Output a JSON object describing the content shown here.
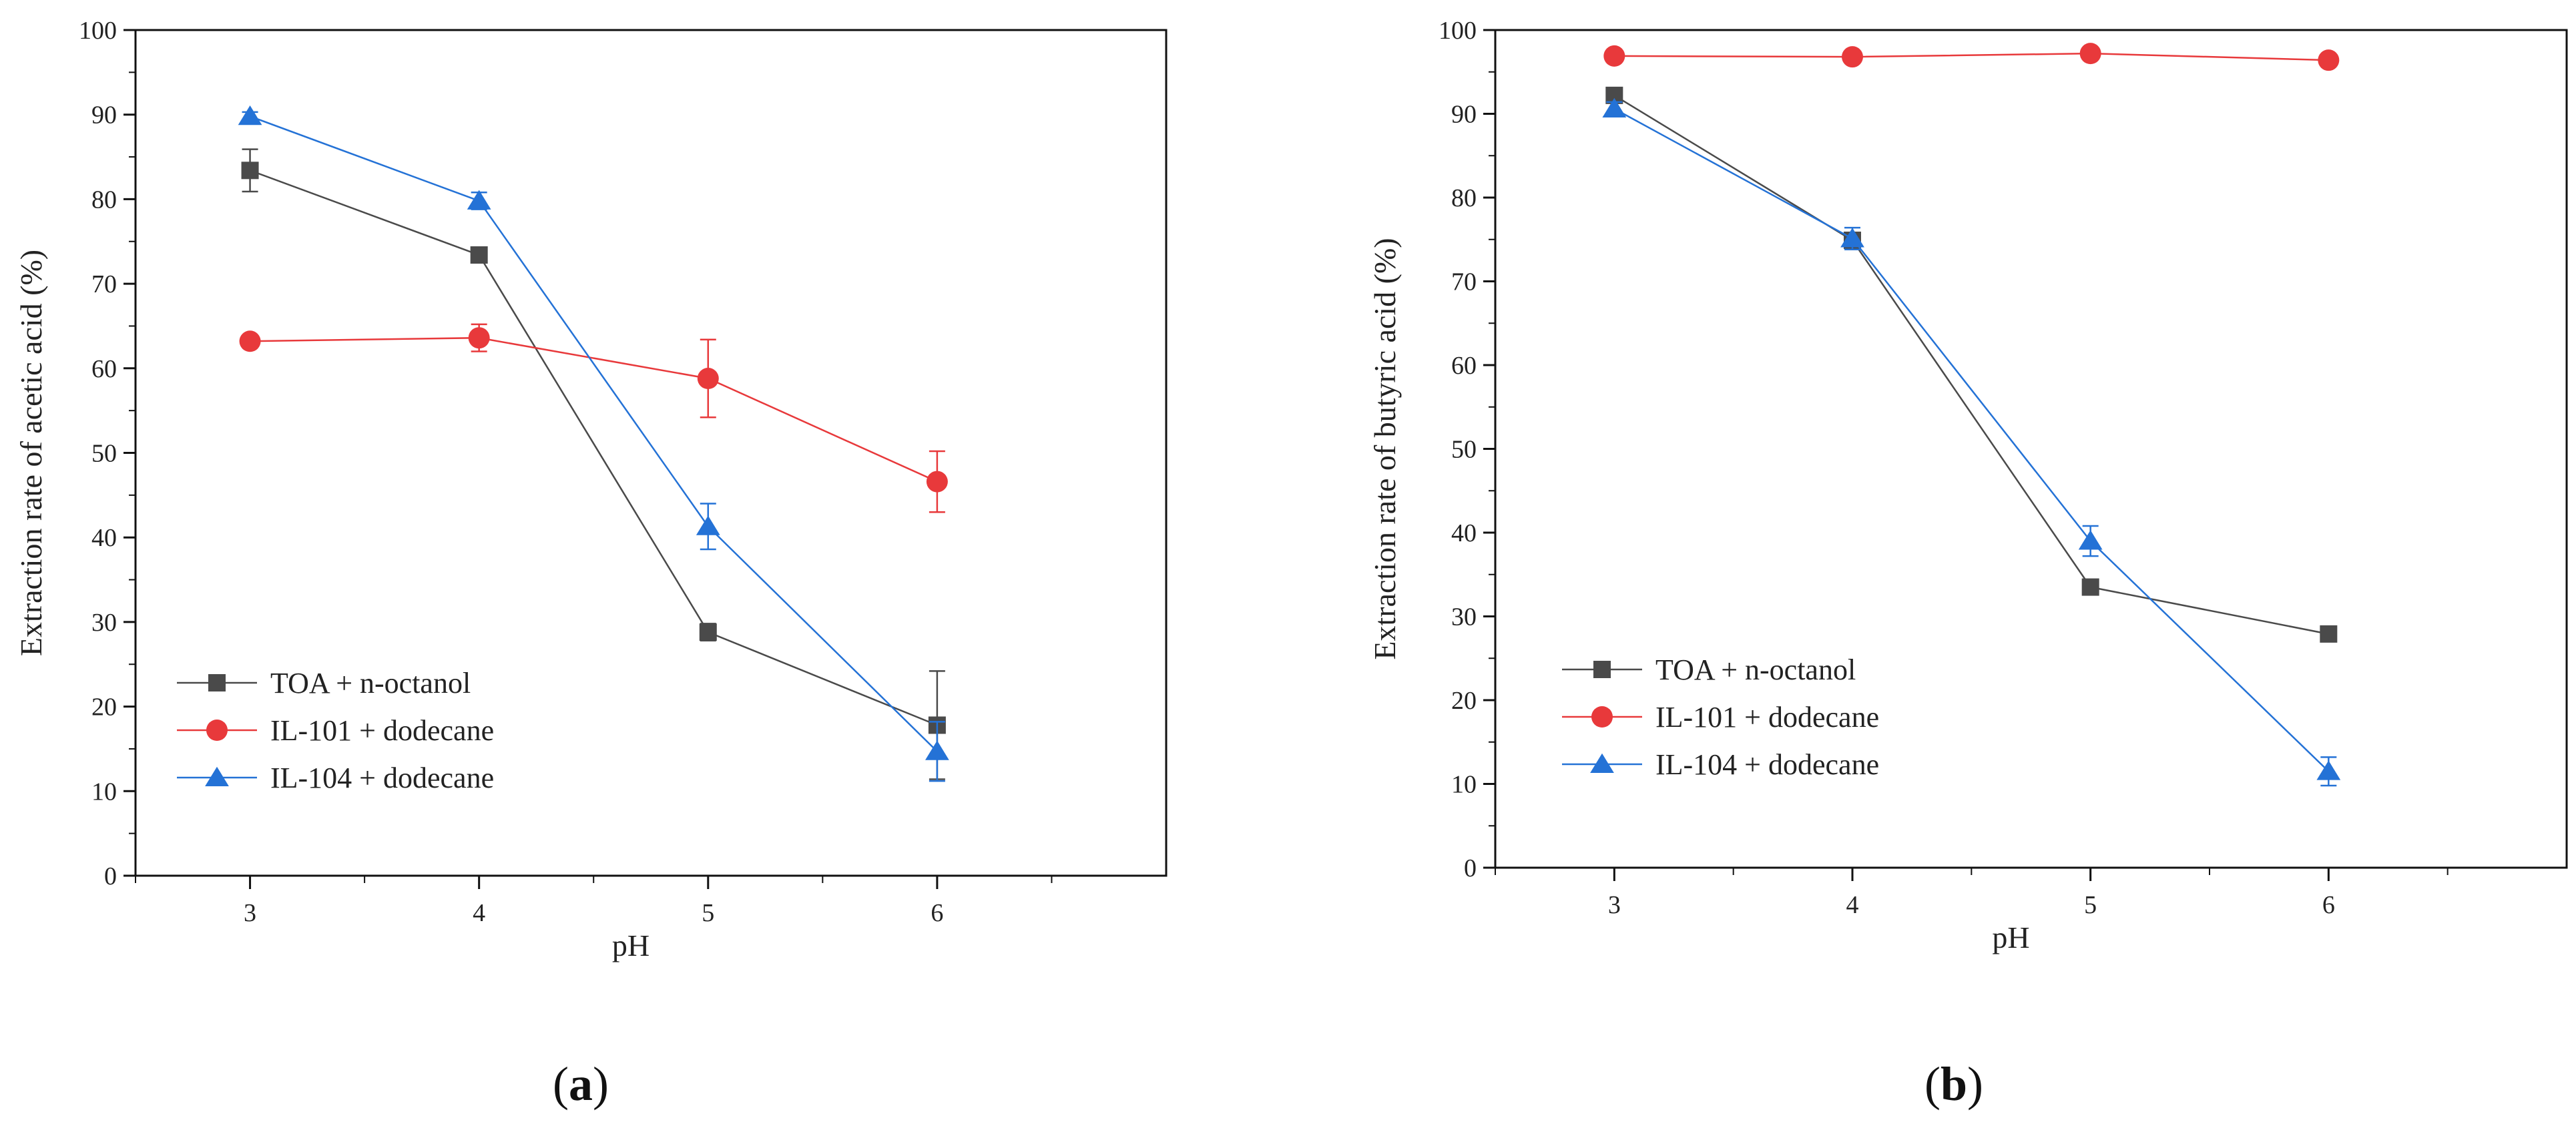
{
  "chart_data": [
    {
      "id": "a",
      "type": "line",
      "panel_label": "a",
      "xlabel": "pH",
      "ylabel": "Extraction rate of acetic acid (%)",
      "x": [
        3,
        4,
        5,
        6
      ],
      "xlim": [
        2.5,
        7.0
      ],
      "ylim": [
        0,
        100
      ],
      "xticks": [
        3,
        4,
        5,
        6
      ],
      "yticks": [
        0,
        10,
        20,
        30,
        40,
        50,
        60,
        70,
        80,
        90,
        100
      ],
      "legend_position": "lower-left",
      "series": [
        {
          "name": "TOA + n-octanol",
          "marker": "square",
          "color": "#4a4a4a",
          "values": [
            83.4,
            73.4,
            28.8,
            17.8
          ],
          "errors": [
            2.5,
            0.6,
            1.0,
            6.4
          ]
        },
        {
          "name": "IL-101 + dodecane",
          "marker": "circle",
          "color": "#e8393b",
          "values": [
            63.2,
            63.6,
            58.8,
            46.6
          ],
          "errors": [
            0.5,
            1.6,
            4.6,
            3.6
          ]
        },
        {
          "name": "IL-104 + dodecane",
          "marker": "triangle",
          "color": "#2472d6",
          "values": [
            89.8,
            79.8,
            41.3,
            14.7
          ],
          "errors": [
            0.5,
            1.0,
            2.7,
            3.5
          ]
        }
      ]
    },
    {
      "id": "b",
      "type": "line",
      "panel_label": "b",
      "xlabel": "pH",
      "ylabel": "Extraction rate of butyric acid (%)",
      "x": [
        3,
        4,
        5,
        6
      ],
      "xlim": [
        2.5,
        7.0
      ],
      "ylim": [
        0,
        100
      ],
      "xticks": [
        3,
        4,
        5,
        6
      ],
      "yticks": [
        0,
        10,
        20,
        30,
        40,
        50,
        60,
        70,
        80,
        90,
        100
      ],
      "legend_position": "lower-left",
      "series": [
        {
          "name": "TOA + n-octanol",
          "marker": "square",
          "color": "#4a4a4a",
          "values": [
            92.2,
            74.9,
            33.5,
            27.9
          ],
          "errors": [
            0.6,
            0.5,
            0.6,
            0.4
          ]
        },
        {
          "name": "IL-101 + dodecane",
          "marker": "circle",
          "color": "#e8393b",
          "values": [
            96.9,
            96.8,
            97.2,
            96.4
          ],
          "errors": [
            0.3,
            0.3,
            0.3,
            0.3
          ]
        },
        {
          "name": "IL-104 + dodecane",
          "marker": "triangle",
          "color": "#2472d6",
          "values": [
            90.6,
            75.1,
            39.0,
            11.5
          ],
          "errors": [
            0.8,
            1.3,
            1.8,
            1.7
          ]
        }
      ]
    }
  ]
}
